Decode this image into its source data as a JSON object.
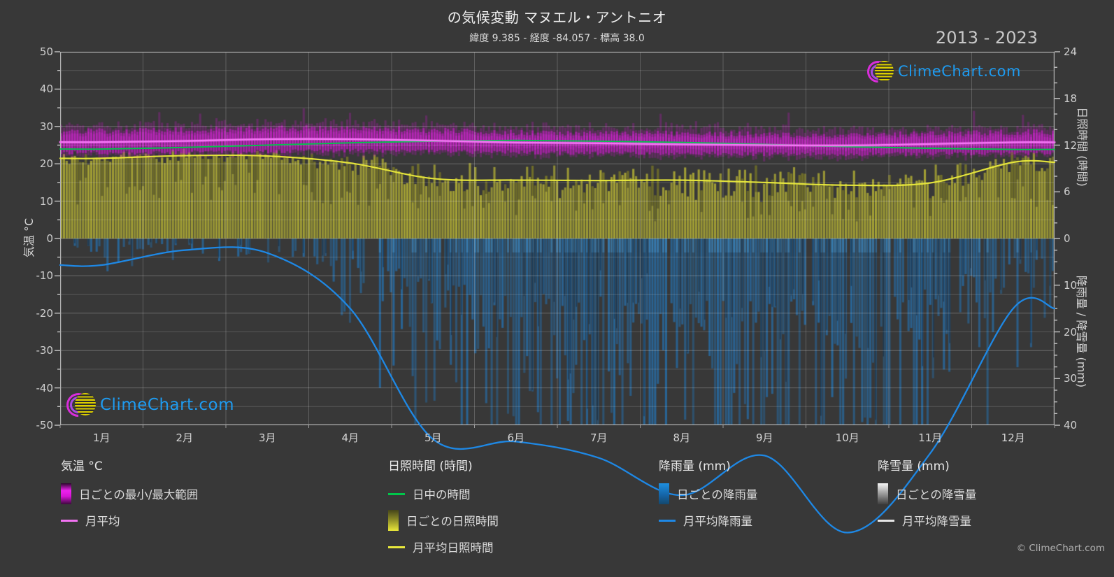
{
  "title": "の気候変動 マヌエル・アントニオ",
  "subtitle": "緯度 9.385 - 経度 -84.057 - 標高 38.0",
  "year_range": "2013 - 2023",
  "branding": {
    "logo_text": "ClimeChart.com",
    "copyright": "© ClimeChart.com"
  },
  "axes": {
    "left": {
      "title": "気温 °C",
      "ticks": [
        50,
        40,
        30,
        20,
        10,
        0,
        -10,
        -20,
        -30,
        -40,
        -50
      ]
    },
    "right_sun": {
      "title": "日照時間 (時間)",
      "ticks": [
        24,
        18,
        12,
        6,
        0
      ]
    },
    "right_rain": {
      "title": "降雨量 / 降雪量 (mm)",
      "ticks": [
        10,
        20,
        30,
        40
      ]
    },
    "x": {
      "months": [
        "1月",
        "2月",
        "3月",
        "4月",
        "5月",
        "6月",
        "7月",
        "8月",
        "9月",
        "10月",
        "11月",
        "12月"
      ]
    }
  },
  "legend": {
    "temp": {
      "header": "気温 °C",
      "items": [
        {
          "swatch": "temp-range",
          "label": "日ごとの最小/最大範囲"
        },
        {
          "swatch": "line-magenta",
          "label": "月平均"
        }
      ]
    },
    "sun": {
      "header": "日照時間 (時間)",
      "items": [
        {
          "swatch": "line-green",
          "label": "日中の時間"
        },
        {
          "swatch": "sun-daily",
          "label": "日ごとの日照時間"
        },
        {
          "swatch": "line-yellow",
          "label": "月平均日照時間"
        }
      ]
    },
    "rain": {
      "header": "降雨量 (mm)",
      "items": [
        {
          "swatch": "rain-daily",
          "label": "日ごとの降雨量"
        },
        {
          "swatch": "line-blue",
          "label": "月平均降雨量"
        }
      ]
    },
    "snow": {
      "header": "降雪量 (mm)",
      "items": [
        {
          "swatch": "snow-daily",
          "label": "日ごとの降雪量"
        },
        {
          "swatch": "line-white",
          "label": "月平均降雪量"
        }
      ]
    }
  },
  "colors": {
    "background": "#383838",
    "magenta_bar": "#c81ec8",
    "magenta_line": "#f273f2",
    "green_line": "#00c64a",
    "yellow_bar": "#a5a235",
    "yellow_line": "#e9e93c",
    "blue_bar": "#266ca6",
    "blue_line": "#1e88e5",
    "snow_line": "#e6e6e6",
    "brand_blue": "#1e9bf0"
  },
  "chart_data": {
    "type": "area",
    "description": "Climate composite chart: daily min/max temperature band, daily sunshine bars, daily rainfall bars plus monthly average lines",
    "period": "2013 - 2023",
    "categories": [
      "1月",
      "2月",
      "3月",
      "4月",
      "5月",
      "6月",
      "7月",
      "8月",
      "9月",
      "10月",
      "11月",
      "12月"
    ],
    "series": [
      {
        "name": "月平均 (気温 °C)",
        "values": [
          25.8,
          26.1,
          26.6,
          26.6,
          26.2,
          25.7,
          25.5,
          25.2,
          25.0,
          24.9,
          25.3,
          25.75
        ]
      },
      {
        "name": "日中の時間 (時間)",
        "values": [
          11.5,
          11.7,
          12.0,
          12.3,
          12.5,
          12.6,
          12.5,
          12.35,
          12.1,
          11.8,
          11.6,
          11.45
        ]
      },
      {
        "name": "月平均日照時間 (時間)",
        "values": [
          10.3,
          10.65,
          10.6,
          9.7,
          7.7,
          7.5,
          7.45,
          7.5,
          7.2,
          6.85,
          7.15,
          9.8
        ]
      },
      {
        "name": "月平均降雨量 (mm)",
        "values": [
          5.7,
          2.5,
          3.1,
          15,
          43,
          43.5,
          47,
          55,
          46.5,
          63,
          46,
          15
        ]
      },
      {
        "name": "月平均降雪量 (mm)",
        "values": [
          0,
          0,
          0,
          0,
          0,
          0,
          0,
          0,
          0,
          0,
          0,
          0
        ]
      }
    ],
    "daily_band_params": {
      "temp_min_mean_c": [
        23.0,
        23.0,
        23.3,
        23.5,
        23.3,
        23.0,
        22.8,
        22.8,
        22.6,
        22.5,
        22.7,
        22.9
      ],
      "temp_max_mean_c": [
        28.8,
        29.0,
        29.5,
        29.6,
        29.0,
        28.3,
        28.2,
        28.1,
        27.8,
        27.7,
        28.0,
        28.5
      ],
      "sun_variation_h": [
        1.1,
        1.0,
        1.0,
        1.4,
        2.6,
        2.8,
        2.8,
        2.8,
        2.9,
        3.0,
        2.8,
        1.6
      ],
      "rain_probability": [
        0.45,
        0.3,
        0.35,
        0.6,
        0.92,
        0.97,
        0.97,
        0.97,
        0.97,
        0.98,
        0.9,
        0.6
      ],
      "rain_mean_mm": [
        6,
        3,
        4,
        12,
        34,
        45,
        48,
        55,
        48,
        60,
        42,
        14
      ]
    },
    "axis_ranges": {
      "temp_c": [
        -50,
        50
      ],
      "sun_h": [
        0,
        24
      ],
      "precip_mm": [
        0,
        40
      ],
      "precip_axis_inverted_below_zero": true
    },
    "grid": true,
    "legend_position": "bottom"
  }
}
